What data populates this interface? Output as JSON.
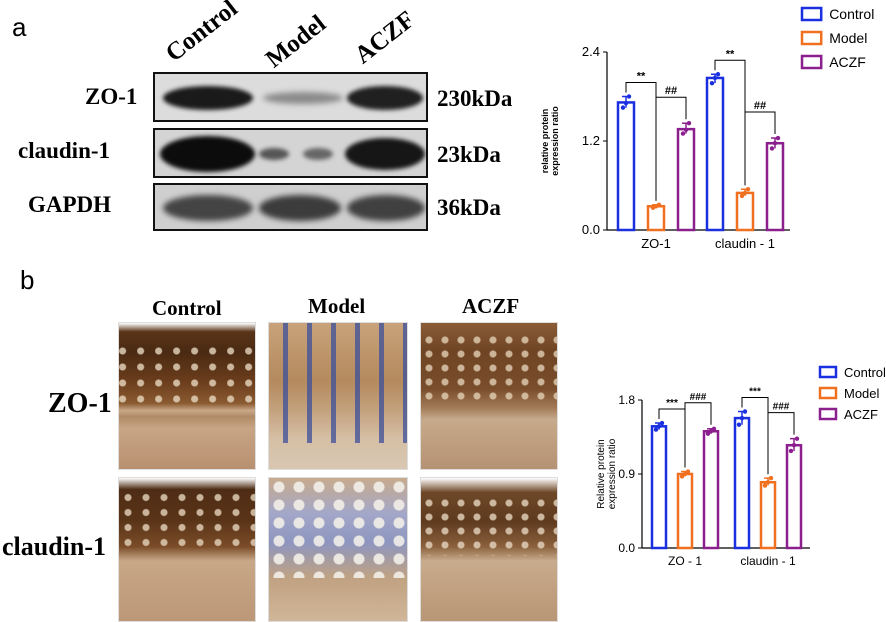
{
  "panel_a": {
    "letter": "a",
    "lane_labels": [
      "Control",
      "Model",
      "ACZF"
    ],
    "rows": [
      {
        "protein": "ZO-1",
        "size": "230kDa"
      },
      {
        "protein": "claudin-1",
        "size": "23kDa"
      },
      {
        "protein": "GAPDH",
        "size": "36kDa"
      }
    ]
  },
  "panel_b": {
    "letter": "b",
    "column_labels": [
      "Control",
      "Model",
      "ACZF"
    ],
    "row_labels": [
      "ZO-1",
      "claudin-1"
    ]
  },
  "colors": {
    "Control": "#1a2fe0",
    "Model": "#f07020",
    "ACZF": "#8b1f8e"
  },
  "chart_data": [
    {
      "type": "bar",
      "categories": [
        "ZO-1",
        "claudin - 1"
      ],
      "series": [
        {
          "name": "Control",
          "values": [
            1.72,
            2.05
          ],
          "points": [
            [
              1.65,
              1.71,
              1.8
            ],
            [
              1.98,
              2.05,
              2.1
            ]
          ]
        },
        {
          "name": "Model",
          "values": [
            0.32,
            0.5
          ],
          "points": [
            [
              0.3,
              0.32,
              0.34
            ],
            [
              0.46,
              0.5,
              0.55
            ]
          ]
        },
        {
          "name": "ACZF",
          "values": [
            1.36,
            1.17
          ],
          "points": [
            [
              1.3,
              1.35,
              1.44
            ],
            [
              1.1,
              1.17,
              1.24
            ]
          ]
        }
      ],
      "ylabel": "relative protein expression ratio",
      "ylim": [
        0,
        2.4
      ],
      "yticks": [
        "0.0",
        "1.2",
        "2.4"
      ],
      "annotations": [
        [
          "**",
          "##"
        ],
        [
          "**",
          "##"
        ]
      ],
      "legend": "top-right"
    },
    {
      "type": "bar",
      "categories": [
        "ZO - 1",
        "claudin - 1"
      ],
      "series": [
        {
          "name": "Control",
          "values": [
            1.48,
            1.58
          ],
          "points": [
            [
              1.44,
              1.48,
              1.52
            ],
            [
              1.5,
              1.58,
              1.66
            ]
          ]
        },
        {
          "name": "Model",
          "values": [
            0.9,
            0.8
          ],
          "points": [
            [
              0.87,
              0.9,
              0.93
            ],
            [
              0.76,
              0.8,
              0.85
            ]
          ]
        },
        {
          "name": "ACZF",
          "values": [
            1.42,
            1.25
          ],
          "points": [
            [
              1.39,
              1.42,
              1.45
            ],
            [
              1.18,
              1.25,
              1.33
            ]
          ]
        }
      ],
      "ylabel": "Relative protein expression ratio",
      "ylim": [
        0,
        1.8
      ],
      "yticks": [
        "0.0",
        "0.9",
        "1.8"
      ],
      "annotations": [
        [
          "***",
          "###"
        ],
        [
          "***",
          "###"
        ]
      ],
      "legend": "top-right"
    }
  ]
}
